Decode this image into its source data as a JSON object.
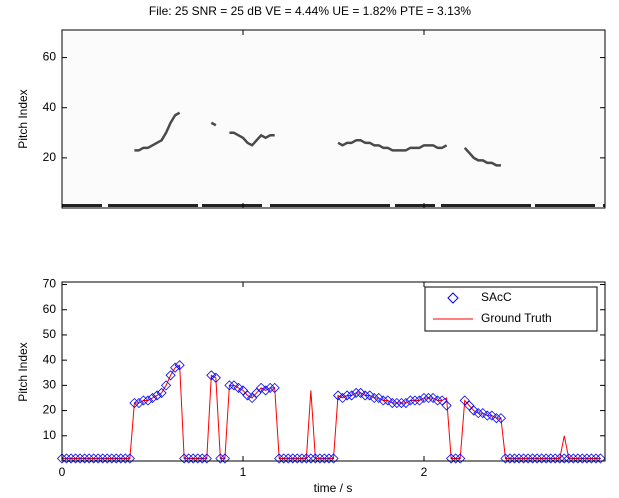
{
  "chart_data": [
    {
      "type": "image",
      "title": "File: 25 SNR = 25 dB VE = 4.44% UE = 1.82% PTE = 3.13%",
      "ylabel": "Pitch Index",
      "xlim": [
        0,
        3
      ],
      "xticks": [
        0,
        1,
        2
      ],
      "ylim": [
        0,
        71
      ],
      "yticks": [
        20,
        40,
        60
      ]
    },
    {
      "type": "line",
      "xlabel": "time / s",
      "ylabel": "Pitch Index",
      "xlim": [
        0,
        3
      ],
      "xticks": [
        0,
        1,
        2
      ],
      "ylim": [
        0,
        71
      ],
      "yticks": [
        10,
        20,
        30,
        40,
        50,
        60,
        70
      ],
      "legend": "upper right",
      "x": [
        0,
        0.025,
        0.05,
        0.075,
        0.1,
        0.125,
        0.15,
        0.175,
        0.2,
        0.225,
        0.25,
        0.275,
        0.3,
        0.325,
        0.35,
        0.375,
        0.4,
        0.425,
        0.45,
        0.475,
        0.5,
        0.525,
        0.55,
        0.575,
        0.6,
        0.625,
        0.65,
        0.675,
        0.7,
        0.725,
        0.75,
        0.775,
        0.8,
        0.825,
        0.85,
        0.875,
        0.9,
        0.925,
        0.95,
        0.975,
        1,
        1.025,
        1.05,
        1.075,
        1.1,
        1.125,
        1.15,
        1.175,
        1.2,
        1.225,
        1.25,
        1.275,
        1.3,
        1.325,
        1.35,
        1.375,
        1.4,
        1.425,
        1.45,
        1.475,
        1.5,
        1.525,
        1.55,
        1.575,
        1.6,
        1.625,
        1.65,
        1.675,
        1.7,
        1.725,
        1.75,
        1.775,
        1.8,
        1.825,
        1.85,
        1.875,
        1.9,
        1.925,
        1.95,
        1.975,
        2,
        2.025,
        2.05,
        2.075,
        2.1,
        2.125,
        2.15,
        2.175,
        2.2,
        2.225,
        2.25,
        2.275,
        2.3,
        2.325,
        2.35,
        2.375,
        2.4,
        2.425,
        2.45,
        2.475,
        2.5,
        2.525,
        2.55,
        2.575,
        2.6,
        2.625,
        2.65,
        2.675,
        2.7,
        2.725,
        2.75,
        2.775,
        2.8,
        2.825,
        2.85,
        2.875,
        2.9,
        2.925,
        2.95,
        2.975
      ],
      "series": [
        {
          "name": "SAcC",
          "color": "#0000ff",
          "marker": "diamond",
          "line": false,
          "values": [
            1,
            1,
            1,
            1,
            1,
            1,
            1,
            1,
            1,
            1,
            1,
            1,
            1,
            1,
            1,
            1,
            23,
            23,
            24,
            24,
            25,
            26,
            27,
            30,
            34,
            37,
            38,
            1,
            1,
            1,
            1,
            1,
            1,
            34,
            33,
            1,
            1,
            30,
            30,
            29,
            28,
            26,
            25,
            27,
            29,
            28,
            29,
            29,
            1,
            1,
            1,
            1,
            1,
            1,
            1,
            1,
            1,
            1,
            1,
            1,
            1,
            26,
            25,
            26,
            26,
            27,
            27,
            26,
            26,
            25,
            25,
            24,
            24,
            23,
            23,
            23,
            23,
            24,
            24,
            24,
            25,
            25,
            25,
            24,
            24,
            22,
            1,
            1,
            1,
            24,
            22,
            20,
            19,
            19,
            18,
            18,
            17,
            17,
            1,
            1,
            1,
            1,
            1,
            1,
            1,
            1,
            1,
            1,
            1,
            1,
            1,
            1,
            1,
            1,
            1,
            1,
            1,
            1,
            1,
            1
          ]
        },
        {
          "name": "Ground Truth",
          "color": "#ff0000",
          "line": true,
          "values": [
            1,
            1,
            1,
            1,
            1,
            1,
            1,
            1,
            1,
            1,
            1,
            1,
            1,
            1,
            1,
            1,
            23,
            23,
            24,
            24,
            25,
            26,
            27,
            30,
            34,
            37,
            38,
            1,
            1,
            1,
            1,
            1,
            1,
            34,
            33,
            1,
            1,
            30,
            30,
            29,
            28,
            26,
            25,
            27,
            29,
            28,
            29,
            29,
            1,
            1,
            1,
            1,
            1,
            1,
            1,
            28,
            1,
            1,
            1,
            1,
            1,
            26,
            25,
            26,
            26,
            27,
            27,
            26,
            26,
            25,
            25,
            24,
            24,
            23,
            23,
            23,
            23,
            24,
            24,
            24,
            25,
            25,
            25,
            24,
            24,
            25,
            1,
            1,
            1,
            24,
            22,
            20,
            19,
            19,
            18,
            18,
            17,
            17,
            1,
            1,
            1,
            1,
            1,
            1,
            1,
            1,
            1,
            1,
            1,
            1,
            1,
            10,
            1,
            1,
            1,
            1,
            1,
            1,
            1,
            1
          ]
        }
      ]
    }
  ]
}
